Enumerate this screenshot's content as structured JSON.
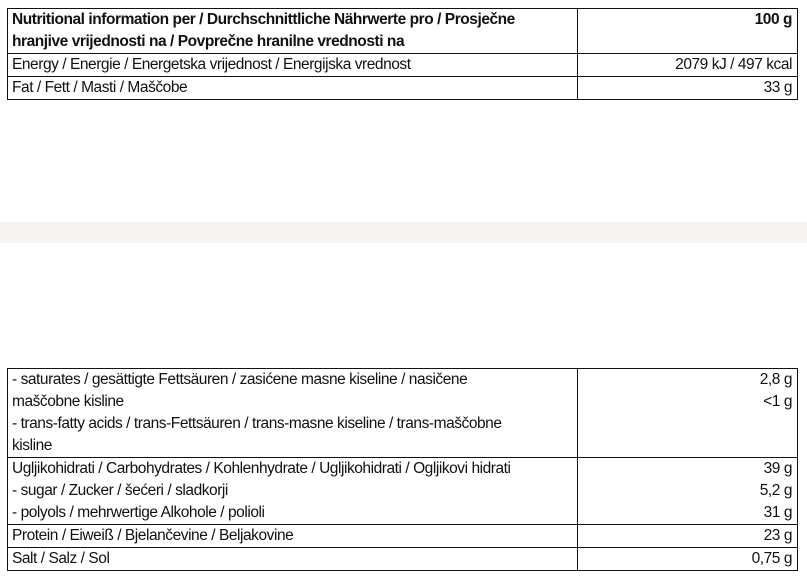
{
  "table1": {
    "header": {
      "label_lines": [
        "Nutritional information per / Durchschnittliche Nährwerte pro / Prosječne",
        "hranjive vrijednosti na / Povprečne hranilne vrednosti na"
      ],
      "value": "100 g"
    },
    "rows": [
      {
        "label": "Energy / Energie / Energetska vrijednost / Energijska vrednost",
        "value": "2079 kJ / 497 kcal"
      },
      {
        "label": "Fat / Fett / Masti / Maščobe",
        "value": "33 g"
      }
    ]
  },
  "table2": {
    "fat_sub": {
      "label_lines": [
        "- saturates / gesättigte Fettsäuren / zasićene masne kiseline / nasičene",
        "maščobne kisline",
        "- trans-fatty acids / trans-Fettsäuren / trans-masne kiseline / trans-maščobne",
        "kisline"
      ],
      "values": [
        "2,8 g",
        "<1 g"
      ]
    },
    "carbs": {
      "label_lines": [
        "Ugljikohidrati / Carbohydrates / Kohlenhydrate / Ugljikohidrati / Ogljikovi hidrati",
        "- sugar / Zucker / šećeri / sladkorji",
        "- polyols / mehrwertige Alkohole / polioli"
      ],
      "values": [
        "39 g",
        "5,2 g",
        "31 g"
      ]
    },
    "protein": {
      "label": "Protein / Eiweiß / Bjelančevine / Beljakovine",
      "value": "23 g"
    },
    "salt": {
      "label": "Salt / Salz / Sol",
      "value": "0,75 g"
    }
  }
}
